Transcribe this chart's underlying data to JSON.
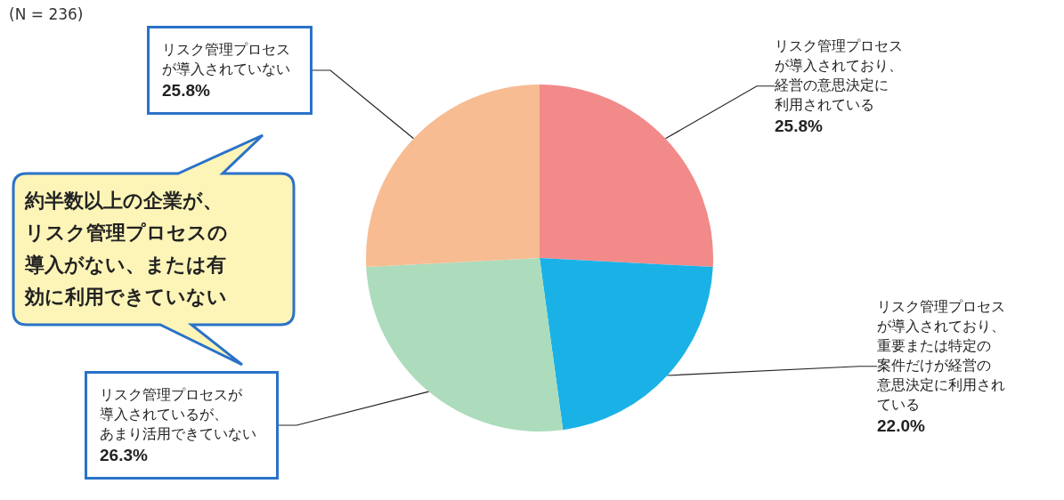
{
  "chart_data": {
    "type": "pie",
    "categories": [
      "リスク管理プロセスが導入されており、経営の意思決定に利用されている",
      "リスク管理プロセスが導入されており、重要または特定の案件だけが経営の意思決定に利用されている",
      "リスク管理プロセスが導入されているが、あまり活用できていない",
      "リスク管理プロセスが導入されていない"
    ],
    "values": [
      25.8,
      22.0,
      26.3,
      25.8
    ],
    "value_labels": [
      "25.8%",
      "22.0%",
      "26.3%",
      "25.8%"
    ],
    "colors": [
      "#f28a8a",
      "#1ab2e6",
      "#acdcbc",
      "#f8bc92"
    ],
    "annotations": [
      "(N = 236)",
      "約半数以上の企業が、リスク管理プロセスの導入がない、または有効に利用できていない"
    ],
    "legend": false
  }
}
